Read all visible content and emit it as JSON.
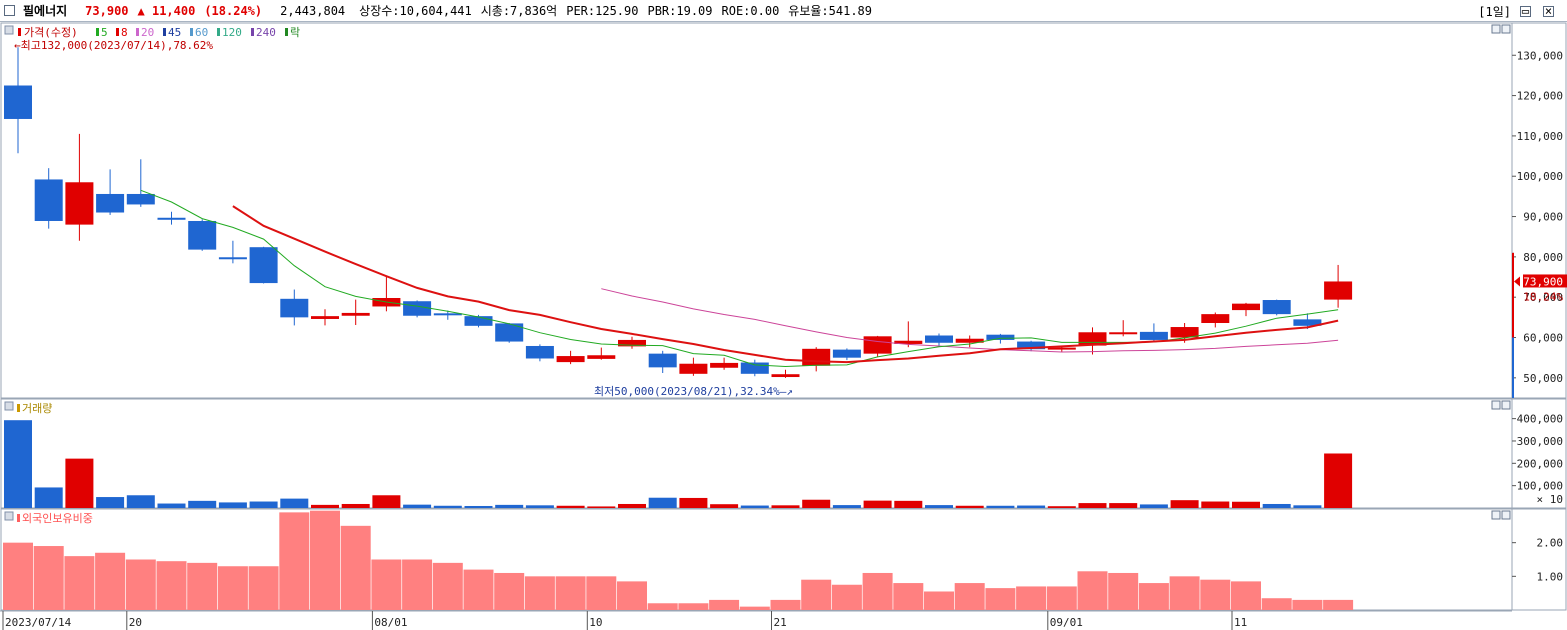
{
  "header": {
    "name": "필에너지",
    "price": "73,900",
    "change": "▲ 11,400",
    "change_pct": "(18.24%)",
    "volume": "2,443,804",
    "listed": "상장수:10,604,441",
    "mktcap": "시총:7,836억",
    "per": "PER:125.90",
    "pbr": "PBR:19.09",
    "roe": "ROE:0.00",
    "float": "유보율:541.89",
    "period": "[1일]"
  },
  "colors": {
    "up": "#e00000",
    "down": "#1f66d1",
    "ma5": "#22aa22",
    "ma20": "#cc4499",
    "ma60": "#dd1111",
    "foreign": "#ff8080"
  },
  "legend": {
    "price_label": "가격(수정)",
    "ma": [
      {
        "label": "5",
        "color": "#22aa22"
      },
      {
        "label": "8",
        "color": "#e00000"
      },
      {
        "label": "20",
        "color": "#cc66cc"
      },
      {
        "label": "45",
        "color": "#1f3fa0"
      },
      {
        "label": "60",
        "color": "#5599cc"
      },
      {
        "label": "120",
        "color": "#33aa88"
      },
      {
        "label": "240",
        "color": "#7744aa"
      },
      {
        "label": "락",
        "color": "#228822"
      }
    ],
    "volume_label": "거래량",
    "foreign_label": "외국인보유비중"
  },
  "annotations": {
    "high": "최고132,000(2023/07/14),78.62%",
    "low": "최저50,000(2023/08/21),32.34%"
  },
  "price_tag": {
    "price": "73,900",
    "pct": "18.24%"
  },
  "chart_data": [
    {
      "type": "candlestick",
      "title": "가격(수정)",
      "ylim": [
        45000,
        138000
      ],
      "yticks": [
        50000,
        60000,
        70000,
        80000,
        90000,
        100000,
        110000,
        120000,
        130000
      ],
      "ytick_labels": [
        "50,000",
        "60,000",
        "70,000",
        "80,000",
        "90,000",
        "100,000",
        "110,000",
        "120,000",
        "130,000"
      ],
      "xtick_labels": [
        {
          "i": 0,
          "label": "2023/07/14"
        },
        {
          "i": 4,
          "label": "20"
        },
        {
          "i": 12,
          "label": "08/01"
        },
        {
          "i": 19,
          "label": "10"
        },
        {
          "i": 25,
          "label": "21"
        },
        {
          "i": 34,
          "label": "09/01"
        },
        {
          "i": 40,
          "label": "11"
        }
      ],
      "candles": [
        {
          "o": 122500,
          "c": 114200,
          "h": 132000,
          "l": 105700
        },
        {
          "o": 99200,
          "c": 88900,
          "h": 102000,
          "l": 87000
        },
        {
          "o": 88000,
          "c": 98500,
          "h": 110500,
          "l": 84000
        },
        {
          "o": 95600,
          "c": 91000,
          "h": 101700,
          "l": 90400
        },
        {
          "o": 95600,
          "c": 93000,
          "h": 104200,
          "l": 92400
        },
        {
          "o": 89700,
          "c": 89200,
          "h": 91200,
          "l": 88000
        },
        {
          "o": 88900,
          "c": 81800,
          "h": 89300,
          "l": 81500
        },
        {
          "o": 79900,
          "c": 79600,
          "h": 84000,
          "l": 78400
        },
        {
          "o": 82400,
          "c": 73500,
          "h": 82500,
          "l": 73400
        },
        {
          "o": 69600,
          "c": 65000,
          "h": 71900,
          "l": 63000
        },
        {
          "o": 64600,
          "c": 65300,
          "h": 67000,
          "l": 63000
        },
        {
          "o": 65400,
          "c": 66100,
          "h": 69400,
          "l": 63100
        },
        {
          "o": 67700,
          "c": 69800,
          "h": 75000,
          "l": 66500
        },
        {
          "o": 69000,
          "c": 65400,
          "h": 69200,
          "l": 65000
        },
        {
          "o": 66000,
          "c": 65700,
          "h": 66700,
          "l": 64400
        },
        {
          "o": 65300,
          "c": 62900,
          "h": 65600,
          "l": 62500
        },
        {
          "o": 63500,
          "c": 59000,
          "h": 63600,
          "l": 58700
        },
        {
          "o": 57900,
          "c": 54800,
          "h": 58300,
          "l": 54100
        },
        {
          "o": 53900,
          "c": 55400,
          "h": 56700,
          "l": 53400
        },
        {
          "o": 54700,
          "c": 55600,
          "h": 57500,
          "l": 54500
        },
        {
          "o": 57800,
          "c": 59400,
          "h": 60200,
          "l": 57200
        },
        {
          "o": 56000,
          "c": 52600,
          "h": 56700,
          "l": 51200
        },
        {
          "o": 51000,
          "c": 53500,
          "h": 55000,
          "l": 50500
        },
        {
          "o": 52500,
          "c": 53700,
          "h": 55000,
          "l": 52000
        },
        {
          "o": 53800,
          "c": 51000,
          "h": 54500,
          "l": 50400
        },
        {
          "o": 50200,
          "c": 50900,
          "h": 52000,
          "l": 50000
        },
        {
          "o": 53000,
          "c": 57200,
          "h": 57600,
          "l": 51600
        },
        {
          "o": 57000,
          "c": 55000,
          "h": 57300,
          "l": 54400
        },
        {
          "o": 56000,
          "c": 60300,
          "h": 60400,
          "l": 55200
        },
        {
          "o": 58400,
          "c": 59200,
          "h": 64000,
          "l": 57600
        },
        {
          "o": 60500,
          "c": 58700,
          "h": 61000,
          "l": 57700
        },
        {
          "o": 58700,
          "c": 59700,
          "h": 60500,
          "l": 57600
        },
        {
          "o": 60700,
          "c": 59400,
          "h": 60900,
          "l": 58500
        },
        {
          "o": 59000,
          "c": 57100,
          "h": 59200,
          "l": 56600
        },
        {
          "o": 57000,
          "c": 57500,
          "h": 58000,
          "l": 56500
        },
        {
          "o": 58000,
          "c": 61300,
          "h": 62500,
          "l": 55800
        },
        {
          "o": 61100,
          "c": 61300,
          "h": 64300,
          "l": 60300
        },
        {
          "o": 61400,
          "c": 59400,
          "h": 63500,
          "l": 58800
        },
        {
          "o": 60000,
          "c": 62600,
          "h": 63600,
          "l": 58700
        },
        {
          "o": 63600,
          "c": 65800,
          "h": 66200,
          "l": 62500
        },
        {
          "o": 66800,
          "c": 68400,
          "h": 68600,
          "l": 65300
        },
        {
          "o": 69300,
          "c": 65800,
          "h": 69400,
          "l": 65500
        },
        {
          "o": 64500,
          "c": 62900,
          "h": 66000,
          "l": 62100
        },
        {
          "o": 69400,
          "c": 73900,
          "h": 78000,
          "l": 67400
        }
      ],
      "ma5": [
        null,
        null,
        null,
        null,
        96500,
        93600,
        89500,
        87300,
        84400,
        77800,
        72600,
        70200,
        68800,
        67800,
        66500,
        65100,
        63400,
        61200,
        59500,
        58400,
        58100,
        58000,
        56000,
        55600,
        53200,
        52800,
        53100,
        53200,
        55200,
        56500,
        57700,
        58400,
        59800,
        59900,
        58800,
        58800,
        58800,
        58900,
        59900,
        61100,
        62800,
        64800,
        65800,
        66900
      ],
      "ma20": [
        null,
        null,
        null,
        null,
        null,
        null,
        null,
        null,
        null,
        null,
        null,
        null,
        null,
        null,
        null,
        null,
        null,
        null,
        null,
        72100,
        70300,
        68800,
        67100,
        65700,
        64500,
        62900,
        61400,
        60000,
        59000,
        58300,
        57900,
        57400,
        57000,
        56700,
        56400,
        56500,
        56700,
        56800,
        57000,
        57300,
        57800,
        58200,
        58600,
        59300
      ],
      "ma8": [
        null,
        null,
        null,
        null,
        null,
        null,
        null,
        92600,
        87700,
        84500,
        81300,
        78200,
        75200,
        72300,
        70200,
        68900,
        66800,
        65600,
        63800,
        62100,
        60900,
        59600,
        58400,
        56900,
        55700,
        54500,
        54100,
        53900,
        54400,
        54800,
        55500,
        56100,
        57100,
        57400,
        57800,
        58200,
        58600,
        59000,
        59400,
        60300,
        61200,
        61900,
        62500,
        64200
      ]
    },
    {
      "type": "bar",
      "title": "거래량",
      "unit_label": "× 10",
      "ylim": [
        0,
        470000
      ],
      "yticks": [
        100000,
        200000,
        300000,
        400000
      ],
      "ytick_labels": [
        "100,000",
        "200,000",
        "300,000",
        "400,000"
      ],
      "values": [
        393000,
        92000,
        221000,
        49000,
        57000,
        20000,
        32000,
        25000,
        29000,
        42000,
        14000,
        18000,
        57000,
        15000,
        10000,
        9000,
        14000,
        12000,
        10000,
        7000,
        18000,
        46000,
        45000,
        17000,
        11000,
        12000,
        37000,
        13000,
        33000,
        32000,
        13000,
        10000,
        10000,
        11000,
        8000,
        22000,
        22000,
        16000,
        35000,
        29000,
        28000,
        18000,
        12000,
        244000
      ]
    },
    {
      "type": "bar",
      "title": "외국인보유비중",
      "ylim": [
        0,
        3.0
      ],
      "yticks": [
        1.0,
        2.0
      ],
      "ytick_labels": [
        "1.00",
        "2.00"
      ],
      "values": [
        2.0,
        1.9,
        1.6,
        1.7,
        1.5,
        1.45,
        1.4,
        1.3,
        1.3,
        2.9,
        2.95,
        2.5,
        1.5,
        1.5,
        1.4,
        1.2,
        1.1,
        1.0,
        1.0,
        1.0,
        0.85,
        0.2,
        0.2,
        0.3,
        0.1,
        0.3,
        0.9,
        0.75,
        1.1,
        0.8,
        0.55,
        0.8,
        0.65,
        0.7,
        0.7,
        1.15,
        1.1,
        0.8,
        1.0,
        0.9,
        0.85,
        0.35,
        0.3,
        0.3
      ]
    }
  ]
}
